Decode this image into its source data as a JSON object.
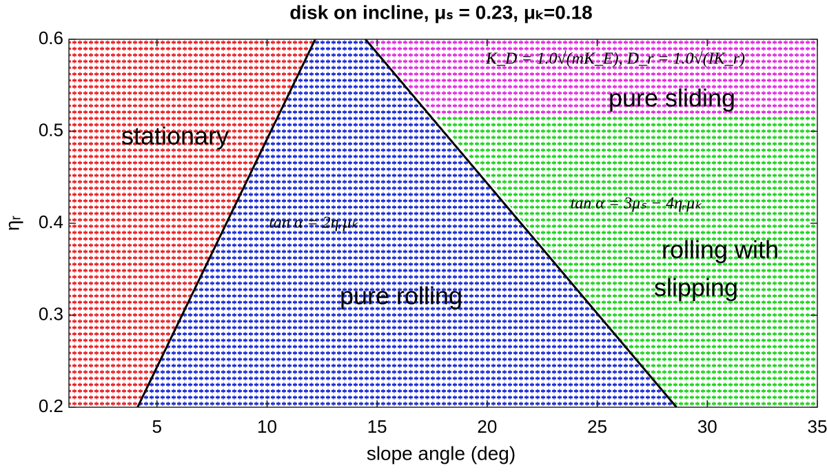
{
  "chart_data": {
    "type": "line",
    "title": "disk on incline, μₛ = 0.23, μₖ=0.18",
    "x_label": "slope angle (deg)",
    "y_label": "ηᵣ",
    "xlim": [
      1,
      35
    ],
    "ylim": [
      0.2,
      0.6
    ],
    "xticks": [
      5,
      10,
      15,
      20,
      25,
      30,
      35
    ],
    "yticks": [
      0.2,
      0.3,
      0.4,
      0.5,
      0.6
    ],
    "series": [
      {
        "color": "#000000",
        "x": [
          4.12,
          12.19
        ],
        "values": [
          0.2,
          0.6
        ]
      },
      {
        "color": "#000000",
        "x": [
          28.6,
          14.47
        ],
        "values": [
          0.2,
          0.6
        ]
      }
    ],
    "regions": [
      {
        "label": "stationary",
        "color": "#e8262a",
        "x": [
          1,
          4.12,
          12.19,
          1
        ],
        "y": [
          0.2,
          0.2,
          0.6,
          0.6
        ]
      },
      {
        "label": "pure rolling",
        "color": "#1f2fd6",
        "x": [
          4.12,
          28.6,
          14.47,
          12.19
        ],
        "y": [
          0.2,
          0.2,
          0.6,
          0.6
        ]
      },
      {
        "label": [
          "rolling with",
          "slipping"
        ],
        "color": "#22d422",
        "x": [
          28.6,
          35,
          35,
          17.7
        ],
        "y": [
          0.2,
          0.2,
          0.515,
          0.515
        ]
      },
      {
        "label": "pure sliding",
        "color": "#e030e0",
        "x": [
          17.7,
          35,
          35,
          14.47
        ],
        "y": [
          0.515,
          0.515,
          0.6,
          0.6
        ]
      }
    ],
    "annotations": [
      "tan α = 2ηᵣμₖ",
      "tan α = 3μₛ − 4ηᵣμₖ",
      "K_D = 1.0√(mK_E), D_r = 1.0√(IK_r)"
    ]
  }
}
